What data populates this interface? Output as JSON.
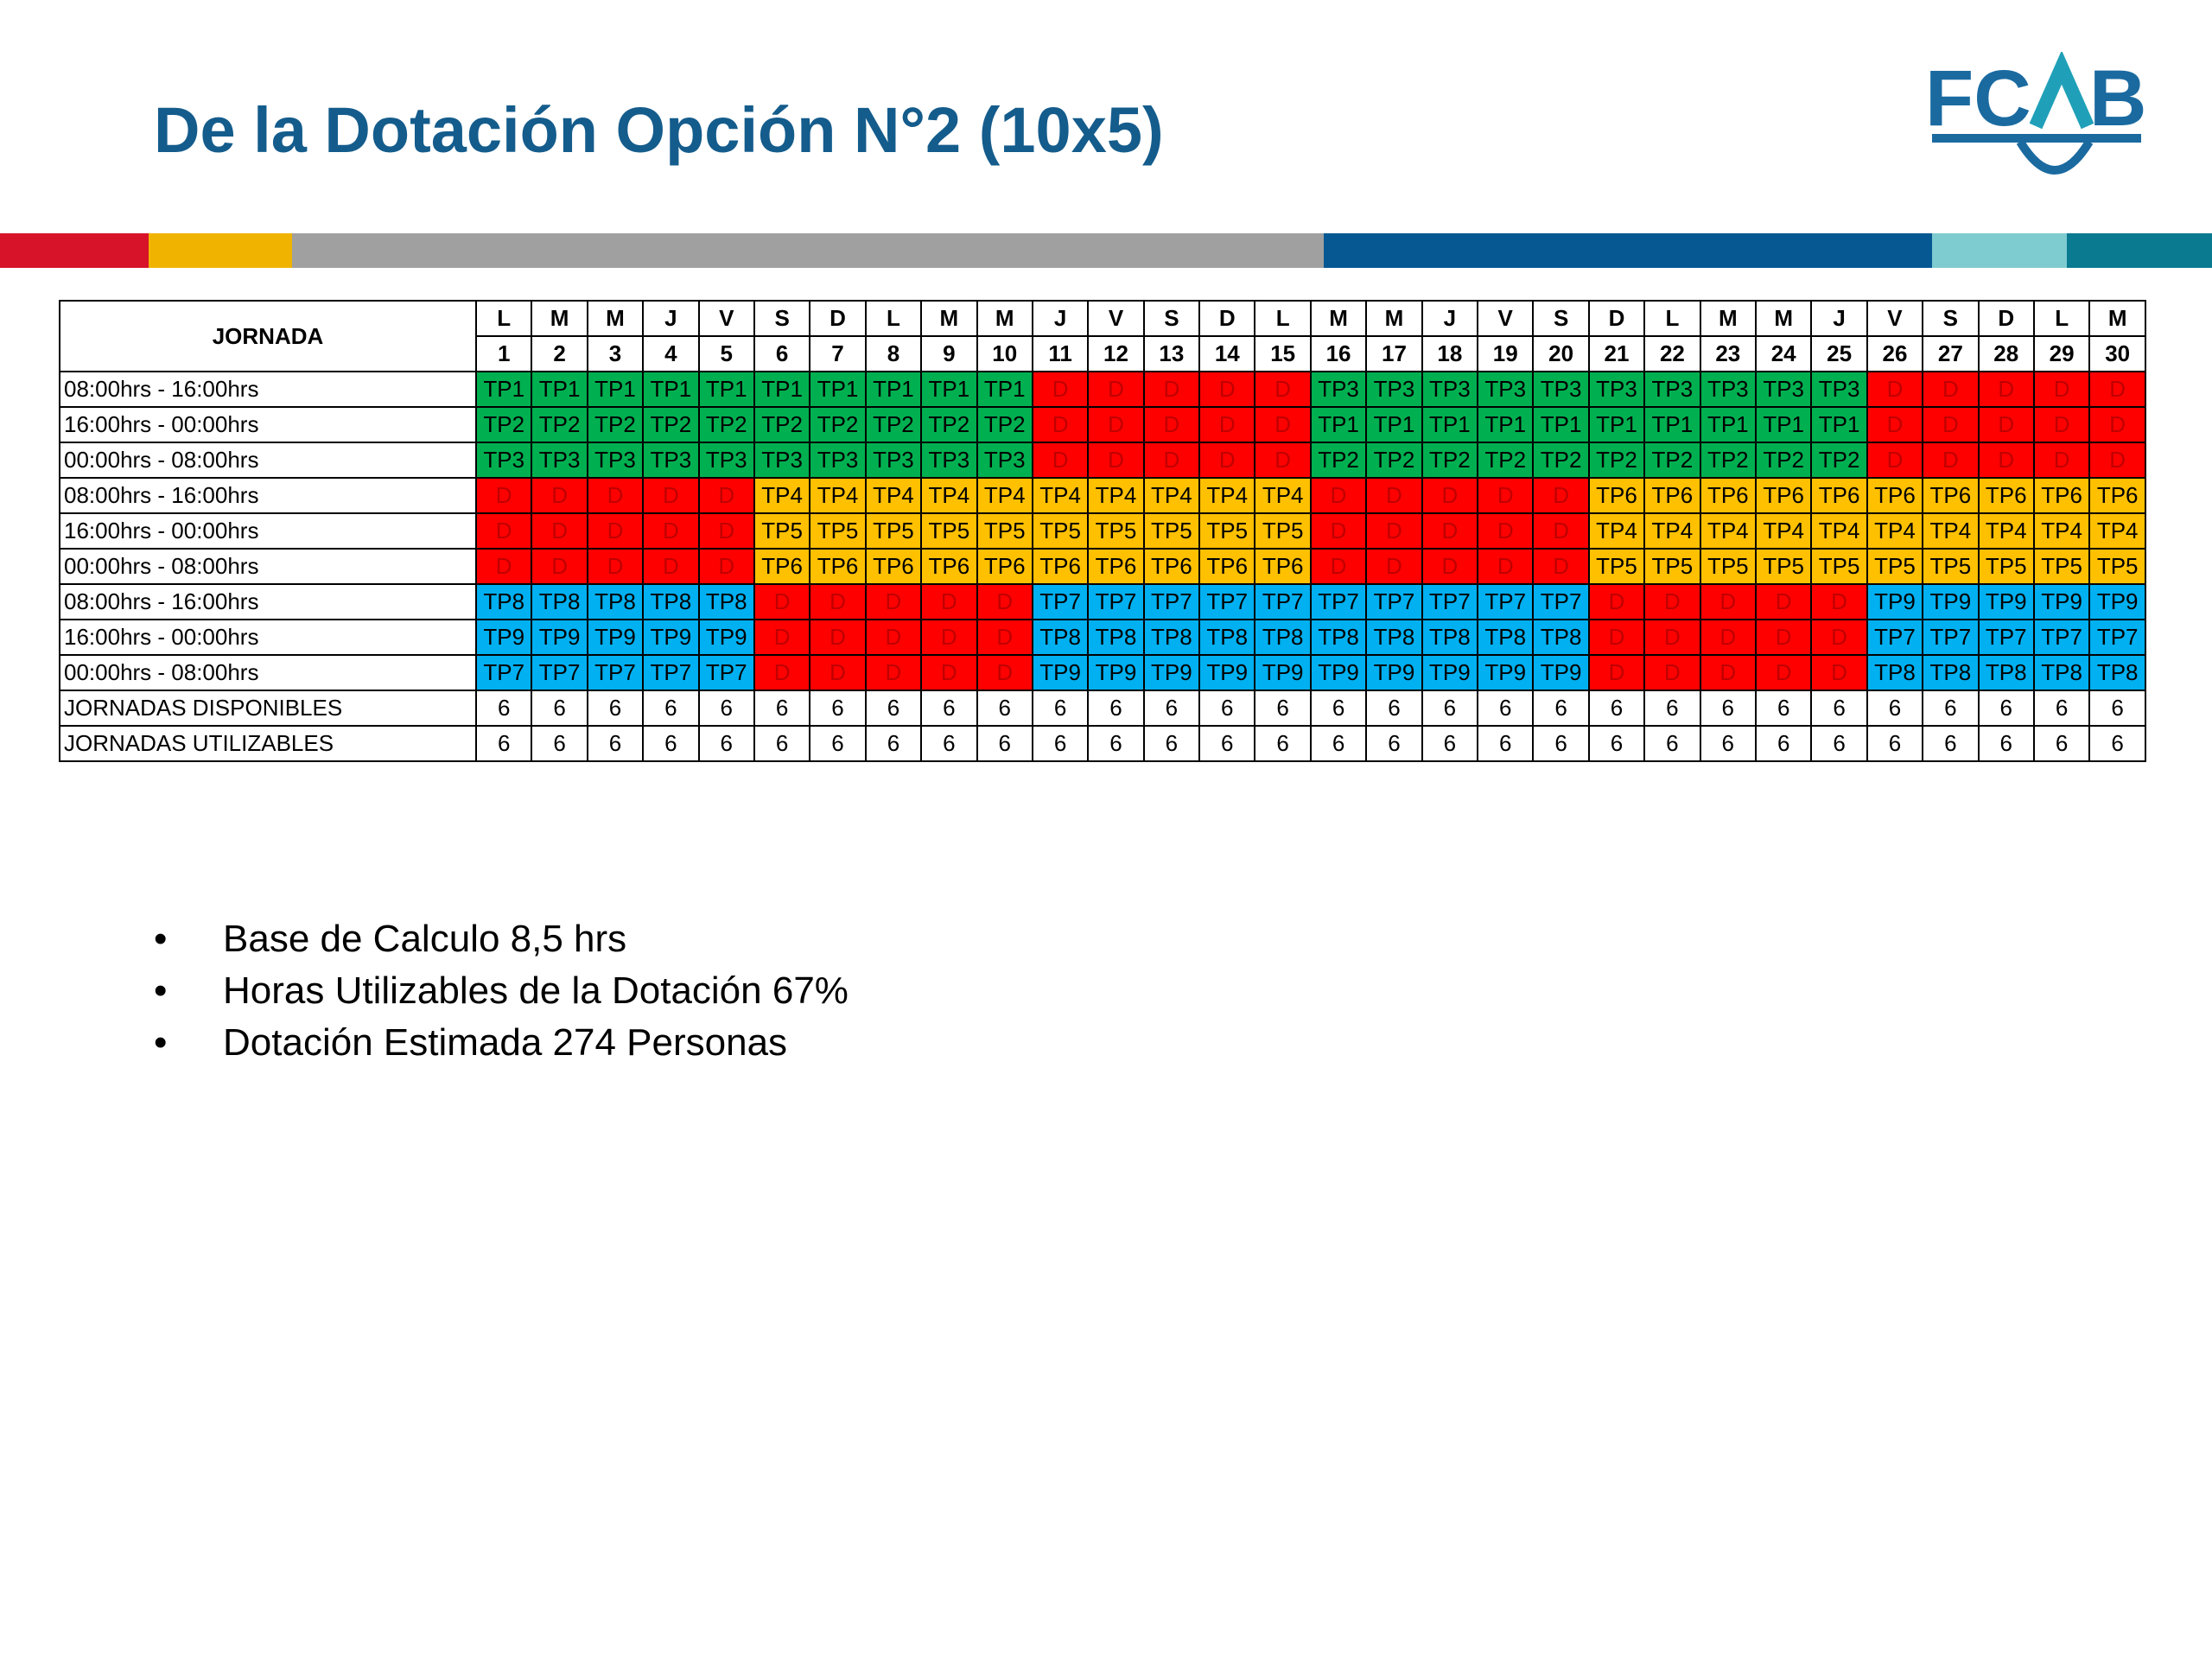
{
  "header": {
    "title": "De la Dotación Opción N°2 (10x5)",
    "logo": {
      "left": "FC",
      "right": "B"
    }
  },
  "table": {
    "corner": "JORNADA",
    "days": [
      "L",
      "M",
      "M",
      "J",
      "V",
      "S",
      "D",
      "L",
      "M",
      "M",
      "J",
      "V",
      "S",
      "D",
      "L",
      "M",
      "M",
      "J",
      "V",
      "S",
      "D",
      "L",
      "M",
      "M",
      "J",
      "V",
      "S",
      "D",
      "L",
      "M"
    ],
    "dates": [
      1,
      2,
      3,
      4,
      5,
      6,
      7,
      8,
      9,
      10,
      11,
      12,
      13,
      14,
      15,
      16,
      17,
      18,
      19,
      20,
      21,
      22,
      23,
      24,
      25,
      26,
      27,
      28,
      29,
      30
    ],
    "rows": [
      {
        "label": "08:00hrs - 16:00hrs",
        "cells": [
          "TP1",
          "TP1",
          "TP1",
          "TP1",
          "TP1",
          "TP1",
          "TP1",
          "TP1",
          "TP1",
          "TP1",
          "D",
          "D",
          "D",
          "D",
          "D",
          "TP3",
          "TP3",
          "TP3",
          "TP3",
          "TP3",
          "TP3",
          "TP3",
          "TP3",
          "TP3",
          "TP3",
          "D",
          "D",
          "D",
          "D",
          "D"
        ]
      },
      {
        "label": "16:00hrs - 00:00hrs",
        "cells": [
          "TP2",
          "TP2",
          "TP2",
          "TP2",
          "TP2",
          "TP2",
          "TP2",
          "TP2",
          "TP2",
          "TP2",
          "D",
          "D",
          "D",
          "D",
          "D",
          "TP1",
          "TP1",
          "TP1",
          "TP1",
          "TP1",
          "TP1",
          "TP1",
          "TP1",
          "TP1",
          "TP1",
          "D",
          "D",
          "D",
          "D",
          "D"
        ]
      },
      {
        "label": "00:00hrs - 08:00hrs",
        "cells": [
          "TP3",
          "TP3",
          "TP3",
          "TP3",
          "TP3",
          "TP3",
          "TP3",
          "TP3",
          "TP3",
          "TP3",
          "D",
          "D",
          "D",
          "D",
          "D",
          "TP2",
          "TP2",
          "TP2",
          "TP2",
          "TP2",
          "TP2",
          "TP2",
          "TP2",
          "TP2",
          "TP2",
          "D",
          "D",
          "D",
          "D",
          "D"
        ]
      },
      {
        "label": "08:00hrs - 16:00hrs",
        "cells": [
          "D",
          "D",
          "D",
          "D",
          "D",
          "TP4",
          "TP4",
          "TP4",
          "TP4",
          "TP4",
          "TP4",
          "TP4",
          "TP4",
          "TP4",
          "TP4",
          "D",
          "D",
          "D",
          "D",
          "D",
          "TP6",
          "TP6",
          "TP6",
          "TP6",
          "TP6",
          "TP6",
          "TP6",
          "TP6",
          "TP6",
          "TP6"
        ]
      },
      {
        "label": "16:00hrs - 00:00hrs",
        "cells": [
          "D",
          "D",
          "D",
          "D",
          "D",
          "TP5",
          "TP5",
          "TP5",
          "TP5",
          "TP5",
          "TP5",
          "TP5",
          "TP5",
          "TP5",
          "TP5",
          "D",
          "D",
          "D",
          "D",
          "D",
          "TP4",
          "TP4",
          "TP4",
          "TP4",
          "TP4",
          "TP4",
          "TP4",
          "TP4",
          "TP4",
          "TP4"
        ]
      },
      {
        "label": "00:00hrs - 08:00hrs",
        "cells": [
          "D",
          "D",
          "D",
          "D",
          "D",
          "TP6",
          "TP6",
          "TP6",
          "TP6",
          "TP6",
          "TP6",
          "TP6",
          "TP6",
          "TP6",
          "TP6",
          "D",
          "D",
          "D",
          "D",
          "D",
          "TP5",
          "TP5",
          "TP5",
          "TP5",
          "TP5",
          "TP5",
          "TP5",
          "TP5",
          "TP5",
          "TP5"
        ]
      },
      {
        "label": "08:00hrs - 16:00hrs",
        "cells": [
          "TP8",
          "TP8",
          "TP8",
          "TP8",
          "TP8",
          "D",
          "D",
          "D",
          "D",
          "D",
          "TP7",
          "TP7",
          "TP7",
          "TP7",
          "TP7",
          "TP7",
          "TP7",
          "TP7",
          "TP7",
          "TP7",
          "D",
          "D",
          "D",
          "D",
          "D",
          "TP9",
          "TP9",
          "TP9",
          "TP9",
          "TP9"
        ]
      },
      {
        "label": "16:00hrs - 00:00hrs",
        "cells": [
          "TP9",
          "TP9",
          "TP9",
          "TP9",
          "TP9",
          "D",
          "D",
          "D",
          "D",
          "D",
          "TP8",
          "TP8",
          "TP8",
          "TP8",
          "TP8",
          "TP8",
          "TP8",
          "TP8",
          "TP8",
          "TP8",
          "D",
          "D",
          "D",
          "D",
          "D",
          "TP7",
          "TP7",
          "TP7",
          "TP7",
          "TP7"
        ]
      },
      {
        "label": "00:00hrs - 08:00hrs",
        "cells": [
          "TP7",
          "TP7",
          "TP7",
          "TP7",
          "TP7",
          "D",
          "D",
          "D",
          "D",
          "D",
          "TP9",
          "TP9",
          "TP9",
          "TP9",
          "TP9",
          "TP9",
          "TP9",
          "TP9",
          "TP9",
          "TP9",
          "D",
          "D",
          "D",
          "D",
          "D",
          "TP8",
          "TP8",
          "TP8",
          "TP8",
          "TP8"
        ]
      }
    ],
    "totals": [
      {
        "label": "JORNADAS DISPONIBLES",
        "values": [
          6,
          6,
          6,
          6,
          6,
          6,
          6,
          6,
          6,
          6,
          6,
          6,
          6,
          6,
          6,
          6,
          6,
          6,
          6,
          6,
          6,
          6,
          6,
          6,
          6,
          6,
          6,
          6,
          6,
          6
        ]
      },
      {
        "label": "JORNADAS UTILIZABLES",
        "values": [
          6,
          6,
          6,
          6,
          6,
          6,
          6,
          6,
          6,
          6,
          6,
          6,
          6,
          6,
          6,
          6,
          6,
          6,
          6,
          6,
          6,
          6,
          6,
          6,
          6,
          6,
          6,
          6,
          6,
          6
        ]
      }
    ]
  },
  "colors": {
    "D": "#ff0000",
    "TP1": "#00b050",
    "TP2": "#00b050",
    "TP3": "#00b050",
    "TP4": "#ffc000",
    "TP5": "#ffc000",
    "TP6": "#ffc000",
    "TP7": "#00b0f0",
    "TP8": "#00b0f0",
    "TP9": "#00b0f0"
  },
  "bullets": [
    "Base de Calculo 8,5 hrs",
    "Horas Utilizables de la Dotación 67%",
    "Dotación Estimada 274 Personas"
  ]
}
